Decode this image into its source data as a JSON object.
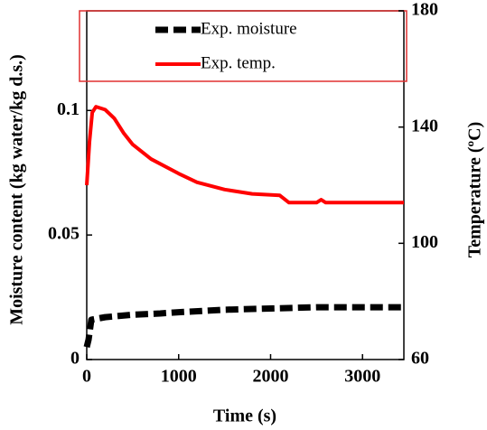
{
  "chart_data": {
    "type": "line",
    "x_label": "Time (s)",
    "y_label": "Moisture content (kg water/kg d.s.)",
    "y2_label": "Temperature (ºC)",
    "xlim": [
      0,
      3450
    ],
    "xticks": [
      0,
      1000,
      2000,
      3000
    ],
    "ylim": [
      0,
      0.14
    ],
    "yticks": [
      0,
      0.05,
      0.1
    ],
    "y2lim": [
      60,
      180
    ],
    "y2ticks": [
      60,
      100,
      140,
      180
    ],
    "legend": "top",
    "series": [
      {
        "name": "Exp. moisture",
        "color": "#000000",
        "line_style": "dashed",
        "x": [
          0,
          20,
          50,
          200,
          500,
          800,
          1000,
          1500,
          2000,
          2500,
          3000,
          3450
        ],
        "values": [
          0.005,
          0.008,
          0.016,
          0.017,
          0.018,
          0.0185,
          0.019,
          0.02,
          0.0205,
          0.021,
          0.021,
          0.021
        ]
      },
      {
        "name": "Exp. temp.",
        "color": "#ff0000",
        "line_style": "solid",
        "axis": "y2",
        "x": [
          0,
          30,
          60,
          100,
          200,
          300,
          400,
          500,
          700,
          1000,
          1200,
          1500,
          1800,
          2100,
          2200,
          2500,
          2550,
          2600,
          3450
        ],
        "values": [
          120,
          135,
          145,
          147,
          146,
          143,
          138,
          134,
          129,
          124,
          121,
          118.5,
          117,
          116.5,
          114,
          114,
          115,
          114,
          114
        ]
      }
    ]
  }
}
